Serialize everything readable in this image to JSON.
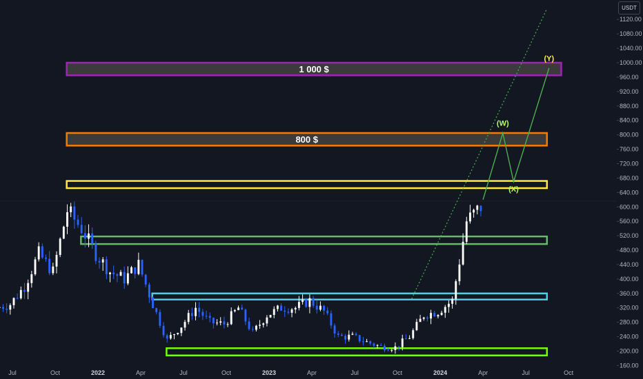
{
  "currency": "USDT",
  "chart_data": {
    "type": "candlestick",
    "price_axis": {
      "ticks": [
        160,
        200,
        240,
        280,
        320,
        360,
        400,
        440,
        480,
        520,
        560,
        600,
        640,
        680,
        720,
        760,
        800,
        840,
        880,
        920,
        960,
        1000,
        1040,
        1080,
        1120
      ],
      "labels": [
        "160.00",
        "200.00",
        "240.00",
        "280.00",
        "320.00",
        "360.00",
        "400.00",
        "440.00",
        "480.00",
        "520.00",
        "560.00",
        "600.00",
        "640.00",
        "680.00",
        "720.00",
        "760.00",
        "800.00",
        "840.00",
        "880.00",
        "920.00",
        "960.00",
        "1000.00",
        "1040.00",
        "1080.00",
        "1120.00"
      ],
      "range": [
        158,
        1150
      ]
    },
    "time_axis": {
      "ticks": [
        {
          "label": "Jul",
          "t": "2021-07",
          "year": false
        },
        {
          "label": "Oct",
          "t": "2021-10",
          "year": false
        },
        {
          "label": "2022",
          "t": "2022-01",
          "year": true
        },
        {
          "label": "Apr",
          "t": "2022-04",
          "year": false
        },
        {
          "label": "Jul",
          "t": "2022-07",
          "year": false
        },
        {
          "label": "Oct",
          "t": "2022-10",
          "year": false
        },
        {
          "label": "2023",
          "t": "2023-01",
          "year": true
        },
        {
          "label": "Apr",
          "t": "2023-04",
          "year": false
        },
        {
          "label": "Jul",
          "t": "2023-07",
          "year": false
        },
        {
          "label": "Oct",
          "t": "2023-10",
          "year": false
        },
        {
          "label": "2024",
          "t": "2024-01",
          "year": true
        },
        {
          "label": "Apr",
          "t": "2024-04",
          "year": false
        },
        {
          "label": "Jul",
          "t": "2024-07",
          "year": false
        },
        {
          "label": "Oct",
          "t": "2024-10",
          "year": false
        }
      ]
    },
    "zones": [
      {
        "label": "1 000 $",
        "low": 965,
        "high": 1000,
        "t_start": "2021-11",
        "t_end": "2024-09",
        "border": "#9c27b0",
        "fill": "#3b3b3b"
      },
      {
        "label": "800 $",
        "low": 770,
        "high": 805,
        "t_start": "2021-11",
        "t_end": "2024-08",
        "border": "#f57c00",
        "fill": "#3b3b3b"
      },
      {
        "label": "",
        "low": 652,
        "high": 672,
        "t_start": "2021-11",
        "t_end": "2024-08",
        "border": "#ffeb3b",
        "fill": "none"
      },
      {
        "label": "",
        "low": 497,
        "high": 518,
        "t_start": "2021-12",
        "t_end": "2024-08",
        "border": "#66bb6a",
        "fill": "none"
      },
      {
        "label": "",
        "low": 343,
        "high": 360,
        "t_start": "2022-05",
        "t_end": "2024-08",
        "border": "#4dd0e1",
        "fill": "none"
      },
      {
        "label": "",
        "low": 188,
        "high": 208,
        "t_start": "2022-06",
        "t_end": "2024-08",
        "border": "#76ff03",
        "fill": "none"
      }
    ],
    "trendline": {
      "color": "#4caf50",
      "style": "dotted",
      "points": [
        {
          "t": "2023-11",
          "v": 345
        },
        {
          "t": "2024-08",
          "v": 1150
        }
      ]
    },
    "projection": {
      "color": "#4caf50",
      "points": [
        {
          "t": "2024-04",
          "v": 620
        },
        {
          "t": "2024-05",
          "v": 805
        },
        {
          "t": "2024-06",
          "v": 670
        },
        {
          "t": "2024-08",
          "v": 985
        }
      ],
      "labels": [
        {
          "text": "(W)",
          "t": "2024-05",
          "v": 825,
          "color": "#b2ff59"
        },
        {
          "text": "(X)",
          "t": "2024-06",
          "v": 643,
          "color": "#b2ff59"
        },
        {
          "text": "(Y)",
          "t": "2024-08",
          "v": 1005,
          "color": "#ffeb3b"
        }
      ]
    },
    "anchors": [
      {
        "t": "2021-06",
        "v": 320
      },
      {
        "t": "2021-07",
        "v": 330
      },
      {
        "t": "2021-08",
        "v": 380
      },
      {
        "t": "2021-09",
        "v": 470
      },
      {
        "t": "2021-10",
        "v": 420
      },
      {
        "t": "2021-11",
        "v": 590
      },
      {
        "t": "2021-12",
        "v": 540
      },
      {
        "t": "2022-01",
        "v": 470
      },
      {
        "t": "2022-02",
        "v": 420
      },
      {
        "t": "2022-03",
        "v": 400
      },
      {
        "t": "2022-04",
        "v": 440
      },
      {
        "t": "2022-05",
        "v": 330
      },
      {
        "t": "2022-06",
        "v": 230
      },
      {
        "t": "2022-07",
        "v": 270
      },
      {
        "t": "2022-08",
        "v": 320
      },
      {
        "t": "2022-09",
        "v": 280
      },
      {
        "t": "2022-10",
        "v": 275
      },
      {
        "t": "2022-11",
        "v": 320
      },
      {
        "t": "2022-12",
        "v": 250
      },
      {
        "t": "2023-01",
        "v": 300
      },
      {
        "t": "2023-02",
        "v": 320
      },
      {
        "t": "2023-03",
        "v": 320
      },
      {
        "t": "2023-04",
        "v": 340
      },
      {
        "t": "2023-05",
        "v": 310
      },
      {
        "t": "2023-06",
        "v": 240
      },
      {
        "t": "2023-07",
        "v": 240
      },
      {
        "t": "2023-08",
        "v": 225
      },
      {
        "t": "2023-09",
        "v": 212
      },
      {
        "t": "2023-10",
        "v": 210
      },
      {
        "t": "2023-11",
        "v": 240
      },
      {
        "t": "2023-12",
        "v": 300
      },
      {
        "t": "2024-01",
        "v": 310
      },
      {
        "t": "2024-02",
        "v": 340
      },
      {
        "t": "2024-03",
        "v": 560
      },
      {
        "t": "2024-04",
        "v": 600
      }
    ],
    "up_color": "#ffffff",
    "down_color": "#2962ff"
  }
}
